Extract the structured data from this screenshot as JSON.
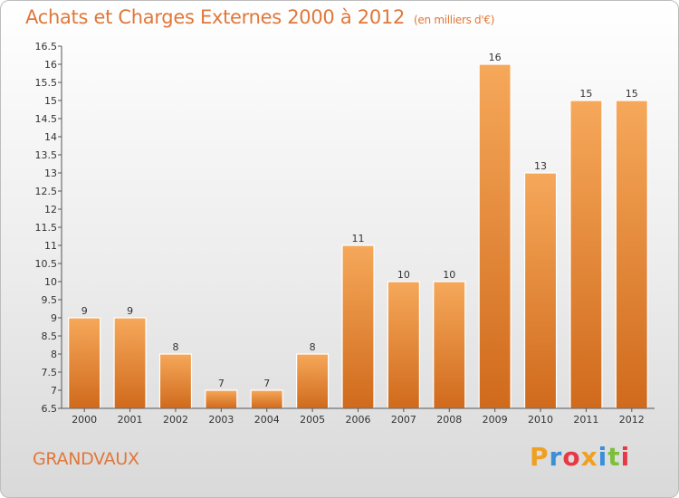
{
  "header": {
    "title": "Achats et Charges Externes 2000 à 2012",
    "subtitle": "(en milliers d'€)"
  },
  "footer": {
    "town": "GRANDVAUX",
    "logo_letters": [
      "P",
      "r",
      "o",
      "x",
      "i",
      "t",
      "i"
    ],
    "logo_colors": [
      "#f0a020",
      "#3a8fd8",
      "#e63946",
      "#f0a020",
      "#3a8fd8",
      "#7cbf3a",
      "#e63946"
    ]
  },
  "chart_data": {
    "type": "bar",
    "categories": [
      "2000",
      "2001",
      "2002",
      "2003",
      "2004",
      "2005",
      "2006",
      "2007",
      "2008",
      "2009",
      "2010",
      "2011",
      "2012"
    ],
    "values": [
      9,
      9,
      8,
      7,
      7,
      8,
      11,
      10,
      10,
      16,
      13,
      15,
      15
    ],
    "value_labels": [
      "9",
      "9",
      "8",
      "7",
      "7",
      "8",
      "11",
      "10",
      "10",
      "16",
      "13",
      "15",
      "15"
    ],
    "ylim": [
      6.5,
      16.5
    ],
    "yticks": [
      6.5,
      7,
      7.5,
      8,
      8.5,
      9,
      9.5,
      10,
      10.5,
      11,
      11.5,
      12,
      12.5,
      13,
      13.5,
      14,
      14.5,
      15,
      15.5,
      16,
      16.5
    ],
    "ytick_labels": [
      "6.5",
      "7",
      "7.5",
      "8",
      "8.5",
      "9",
      "9.5",
      "10",
      "10.5",
      "11",
      "11.5",
      "12",
      "12.5",
      "13",
      "13.5",
      "14",
      "14.5",
      "15",
      "15.5",
      "16",
      "16.5"
    ],
    "grid": false,
    "colors": {
      "bar_top": "#f6a85a",
      "bar_bottom": "#d06a1c",
      "axis": "#555555",
      "accent": "#e0773a"
    }
  }
}
